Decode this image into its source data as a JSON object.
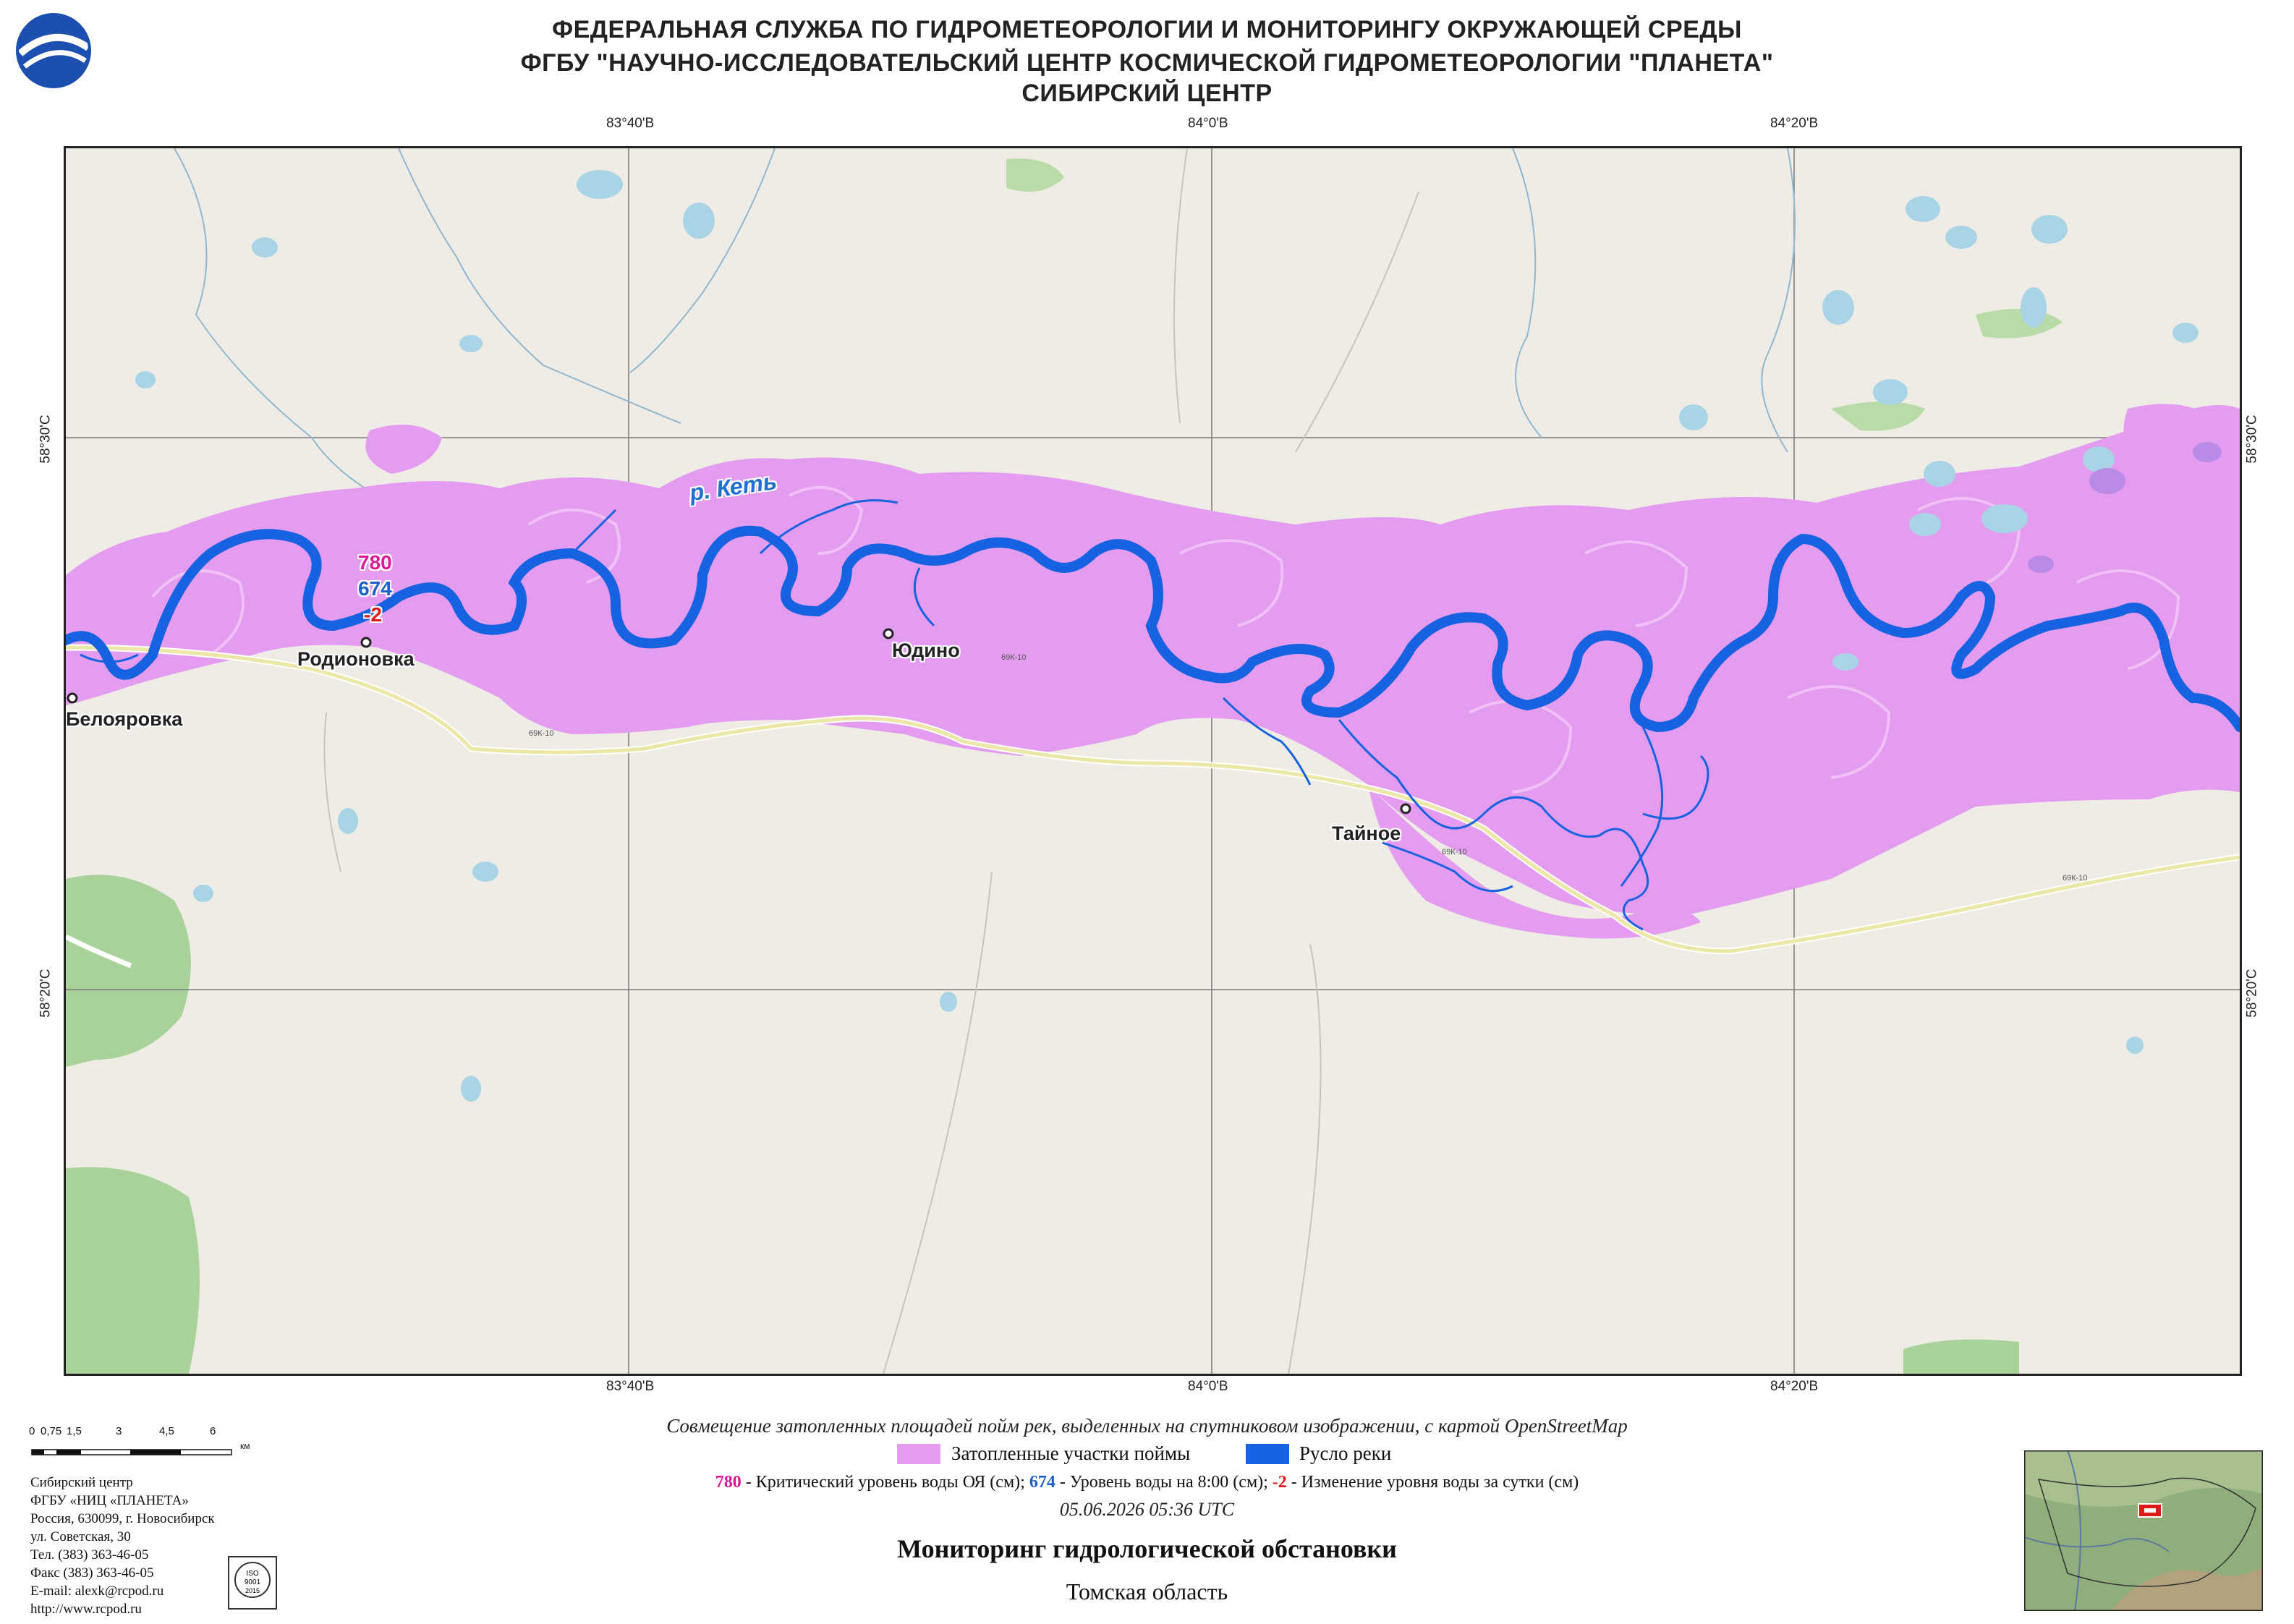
{
  "header": {
    "line1": "ФЕДЕРАЛЬНАЯ СЛУЖБА ПО ГИДРОМЕТЕОРОЛОГИИ И МОНИТОРИНГУ ОКРУЖАЮЩЕЙ СРЕДЫ",
    "line2": "ФГБУ \"НАУЧНО-ИССЛЕДОВАТЕЛЬСКИЙ ЦЕНТР КОСМИЧЕСКОЙ ГИДРОМЕТЕОРОЛОГИИ \"ПЛАНЕТА\"",
    "line3": "СИБИРСКИЙ ЦЕНТР"
  },
  "map": {
    "grid_top": [
      "83°40'В",
      "84°0'В",
      "84°20'В"
    ],
    "grid_bottom": [
      "83°40'В",
      "84°0'В",
      "84°20'В"
    ],
    "grid_left": [
      "58°30'С",
      "58°20'С"
    ],
    "grid_right": [
      "58°30'С",
      "58°20'С"
    ],
    "river_name": "р. Кеть",
    "places": {
      "rodionovka": "Родионовка",
      "belyarovka": "Белояровка",
      "yudino": "Юдино",
      "taynoe": "Тайное"
    },
    "gauge": {
      "critical": "780",
      "level": "674",
      "change": "-2"
    },
    "road_labels": [
      "69К-10",
      "69К-10",
      "69К-10",
      "69К-10"
    ],
    "colors": {
      "flood": "#e49cf0",
      "river": "#1662e0",
      "land": "#efece6",
      "forest": "#a8d29a",
      "lake": "#a9d4e6",
      "critical": "#e0179a",
      "level": "#1f5fc8",
      "change": "#e01a1a"
    }
  },
  "scale": {
    "ticks": [
      "0",
      "0,75",
      "1,5",
      "3",
      "4,5",
      "6"
    ],
    "unit": "км"
  },
  "caption": "Совмещение затопленных площадей пойм рек, выделенных на спутниковом изображении, с картой OpenStreetMap",
  "legend": {
    "flood_label": "Затопленные участки поймы",
    "river_label": "Русло реки",
    "line2_crit_value": "780",
    "line2_crit_text": " - Критический уровень воды ОЯ (см); ",
    "line2_level_value": "674",
    "line2_level_text": " - Уровень воды на 8:00 (см); ",
    "line2_change_value": "-2",
    "line2_change_text": "  - Изменение уровня воды за сутки (см)"
  },
  "datetime": "05.06.2026  05:36 UTC",
  "title": "Мониторинг гидрологической обстановки",
  "region": "Томская область",
  "contacts": [
    "Сибирский центр",
    "ФГБУ «НИЦ «ПЛАНЕТА»",
    "Россия, 630099, г. Новосибирск",
    "ул. Советская, 30",
    "Тел. (383) 363-46-05",
    "Факс (383) 363-46-05",
    "E-mail: alexk@rcpod.ru",
    "http://www.rcpod.ru"
  ],
  "iso_badge": {
    "top": "ISO",
    "mid": "9001",
    "bot": "2015"
  }
}
